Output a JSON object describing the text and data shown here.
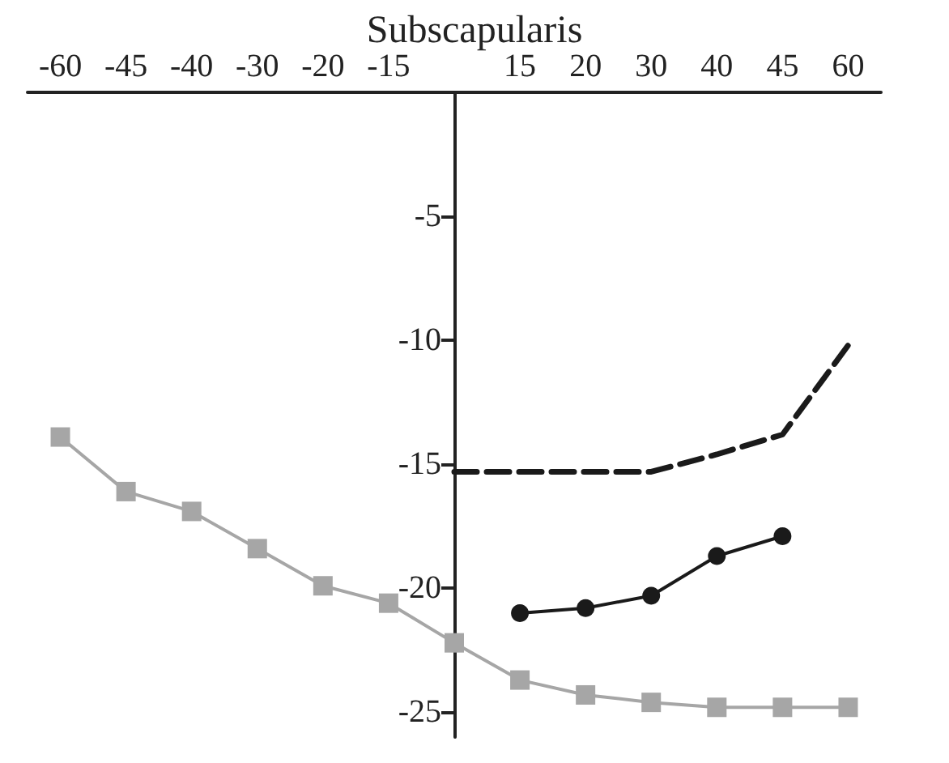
{
  "chart_data": {
    "type": "line",
    "title": "Subscapularis",
    "categories": [
      "-60",
      "-45",
      "-40",
      "-30",
      "-20",
      "-15",
      null,
      "15",
      "20",
      "30",
      "40",
      "45",
      "60"
    ],
    "ylim": [
      -26,
      0
    ],
    "yticks": [
      {
        "value": 0,
        "label": null
      },
      -5,
      -10,
      -15,
      -20,
      -25
    ],
    "grid": false,
    "series": [
      {
        "color": "#a6a6a6",
        "marker": "square",
        "line_style": "solid",
        "values": [
          -13.9,
          -16.1,
          -16.9,
          -18.4,
          -19.9,
          -20.6,
          -22.2,
          -23.7,
          -24.3,
          -24.6,
          -24.8,
          -24.8,
          -24.8
        ]
      },
      {
        "color": "#1a1a1a",
        "marker": "circle",
        "line_style": "solid",
        "values": [
          null,
          null,
          null,
          null,
          null,
          null,
          null,
          -21.0,
          -20.8,
          -20.3,
          -18.7,
          -17.9,
          null
        ]
      },
      {
        "color": "#1a1a1a",
        "marker": "none",
        "line_style": "dashed",
        "values": [
          null,
          null,
          null,
          null,
          null,
          null,
          -15.3,
          -15.3,
          -15.3,
          -15.3,
          -14.6,
          -13.8,
          -10.2
        ]
      }
    ]
  }
}
